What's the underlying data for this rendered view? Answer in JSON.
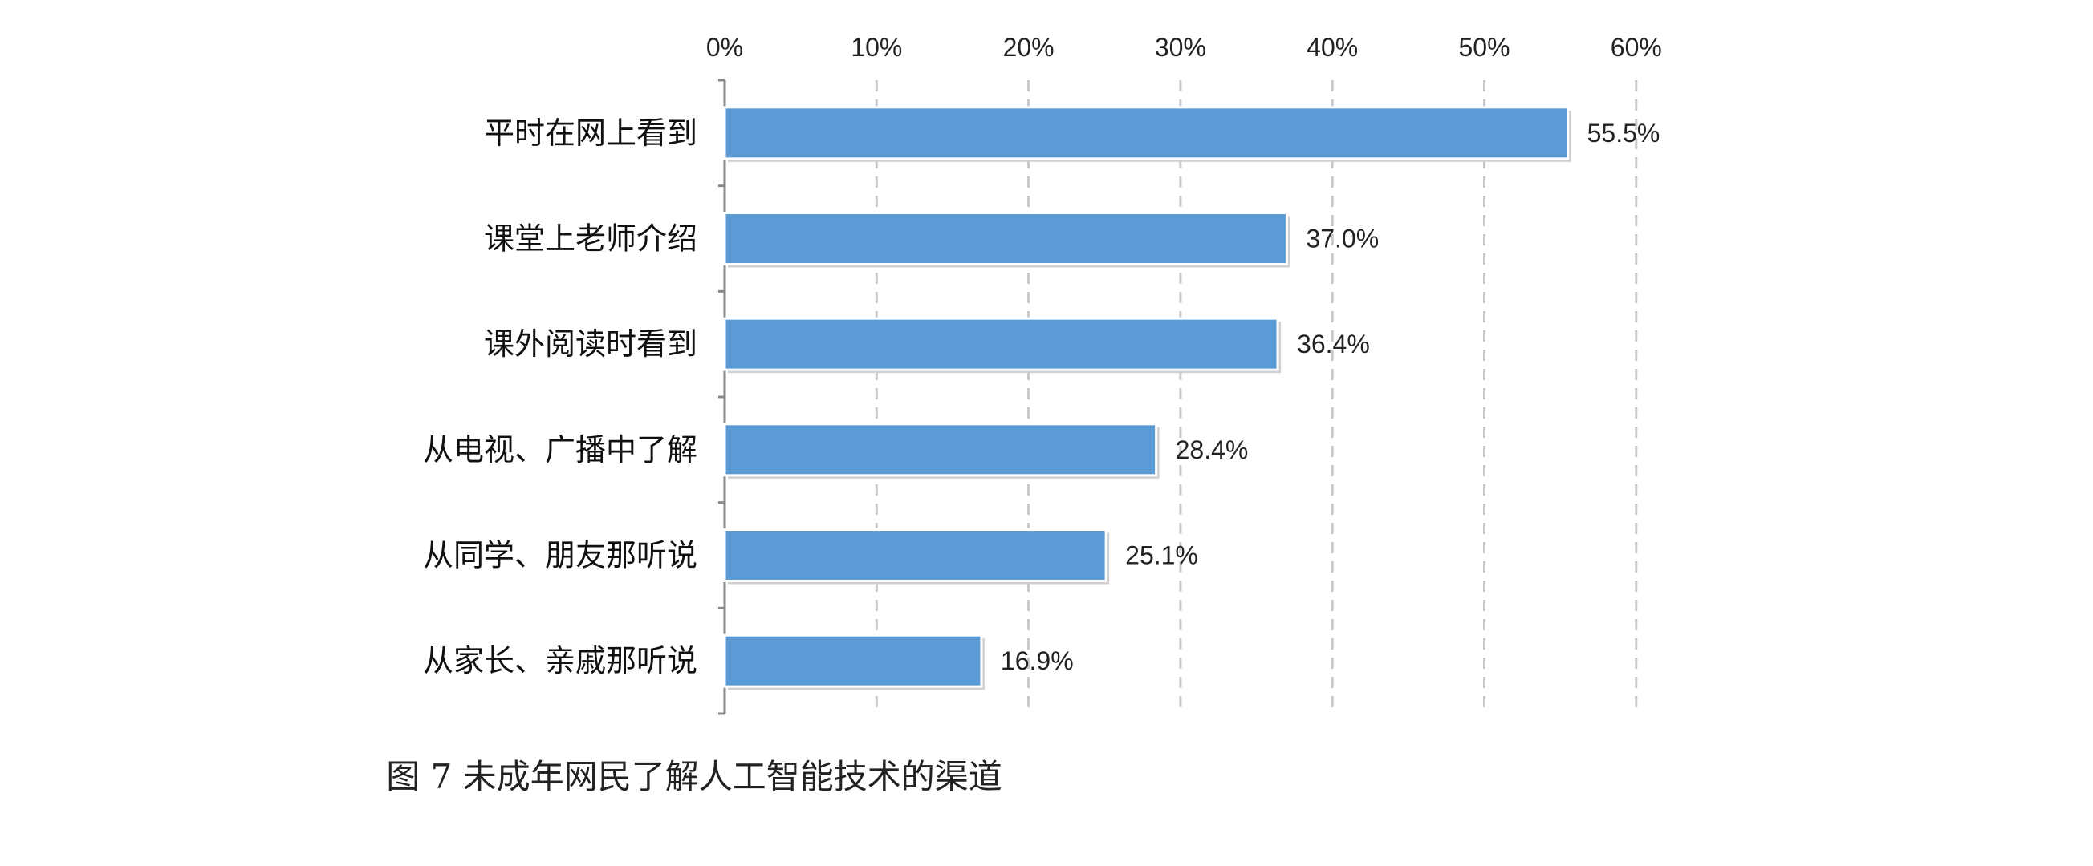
{
  "caption": "图 7 未成年网民了解人工智能技术的渠道",
  "chart_data": {
    "type": "bar",
    "orientation": "horizontal",
    "categories": [
      "平时在网上看到",
      "课堂上老师介绍",
      "课外阅读时看到",
      "从电视、广播中了解",
      "从同学、朋友那听说",
      "从家长、亲戚那听说"
    ],
    "values": [
      55.5,
      37.0,
      36.4,
      28.4,
      25.1,
      16.9
    ],
    "value_labels": [
      "55.5%",
      "37.0%",
      "36.4%",
      "28.4%",
      "25.1%",
      "16.9%"
    ],
    "xticks": [
      "0%",
      "10%",
      "20%",
      "30%",
      "40%",
      "50%",
      "60%"
    ],
    "xlim": [
      0,
      60
    ],
    "x_axis_position": "top",
    "grid": "vertical dashed",
    "bar_color": "#5b9bd5",
    "legend": "none"
  }
}
